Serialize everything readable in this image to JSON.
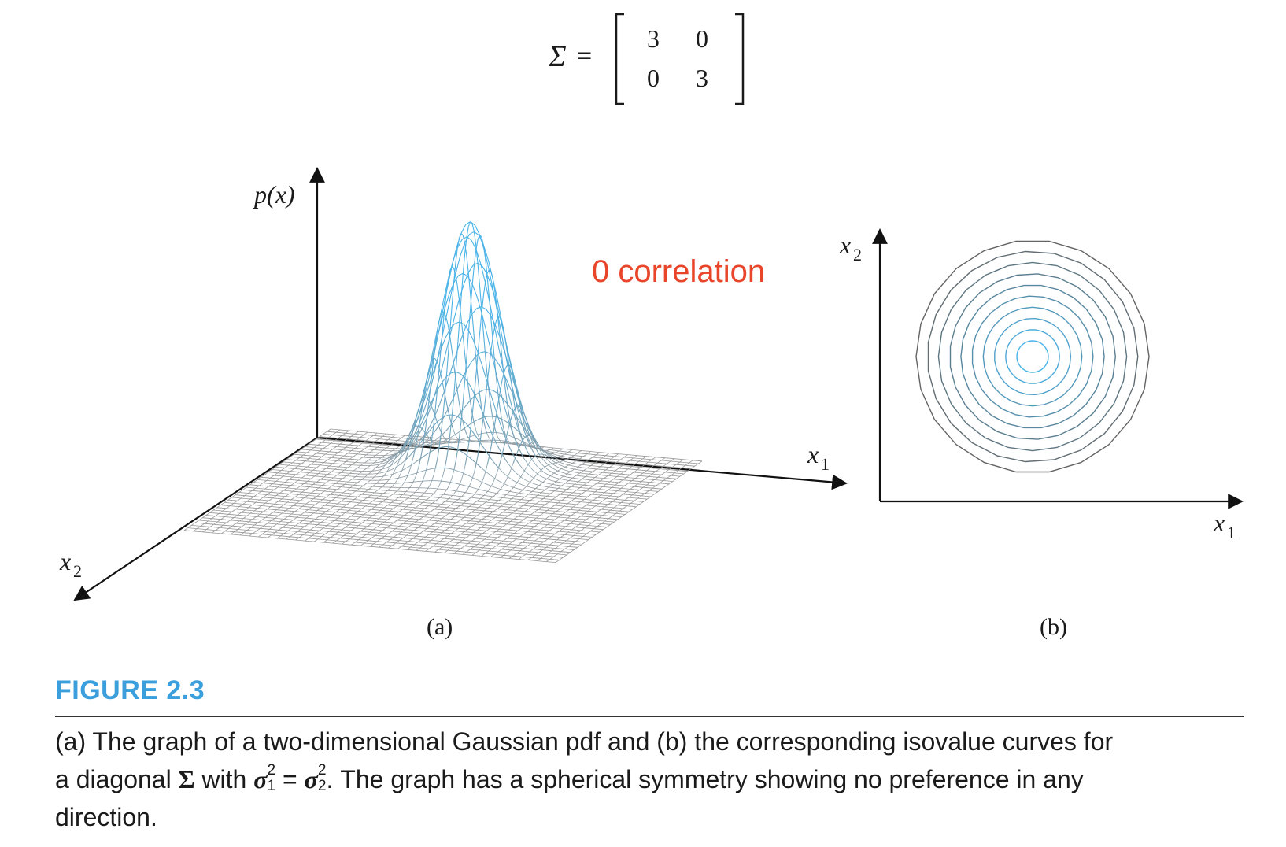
{
  "matrix": {
    "symbol": "Σ",
    "equals": "=",
    "rows": [
      [
        "3",
        "0"
      ],
      [
        "0",
        "3"
      ]
    ]
  },
  "panel_a": {
    "label": "(a)",
    "z_axis_label": "p(x)",
    "x1_label": "x",
    "x1_sub": "1",
    "x2_label": "x",
    "x2_sub": "2",
    "annotation": "0 correlation",
    "annotation_color": "#e8452a",
    "surface_color": "#4ab3e8",
    "base_color": "#8a8a8a"
  },
  "panel_b": {
    "label": "(b)",
    "x1_label": "x",
    "x1_sub": "1",
    "x2_label": "x",
    "x2_sub": "2",
    "contour_count": 10
  },
  "caption": {
    "label": "FIGURE 2.3",
    "line1": "(a) The graph of a two-dimensional Gaussian pdf and (b) the corresponding isovalue curves for",
    "line2_a": "a diagonal ",
    "line2_sigma": "Σ",
    "line2_b": " with ",
    "line2_s1": "σ",
    "line2_s1_sub": "1",
    "line2_s1_sup": "2",
    "line2_eq": " = ",
    "line2_s2": "σ",
    "line2_s2_sub": "2",
    "line2_s2_sup": "2",
    "line2_c": ". The graph has a spherical symmetry showing no preference in any",
    "line3": "direction."
  }
}
